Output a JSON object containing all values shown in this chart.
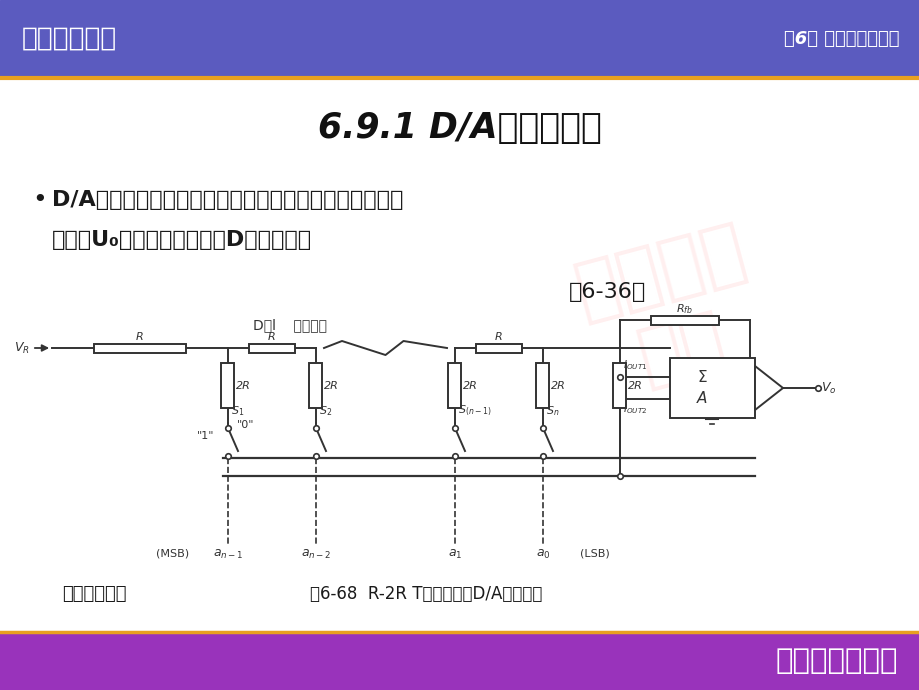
{
  "header_text_left": "电气测试技术",
  "header_text_right": "第6章 数字化测量技术",
  "footer_text": "机械工业出版社",
  "title": "6.9.1 D/A的转换原理",
  "bullet1": "D/A转换器用来将数字量转换成模拟量。其基本要求是输",
  "bullet2": "出电压U₀应该和输入数字量D成正比，即",
  "formula_ref": "（6-36）",
  "caption": "图6-68  R-2R T型网络系统D/A转换原理",
  "sub_caption": "转换原理图。",
  "partial_label": "D／l    参考电压",
  "header_color": "#5B5BBF",
  "footer_color": "#9933BB",
  "accent_color": "#E8A020",
  "body_bg": "#FFFFFF",
  "line_color": "#333333",
  "text_color": "#1A1A1A",
  "watermark_color": "#FFD8D8"
}
